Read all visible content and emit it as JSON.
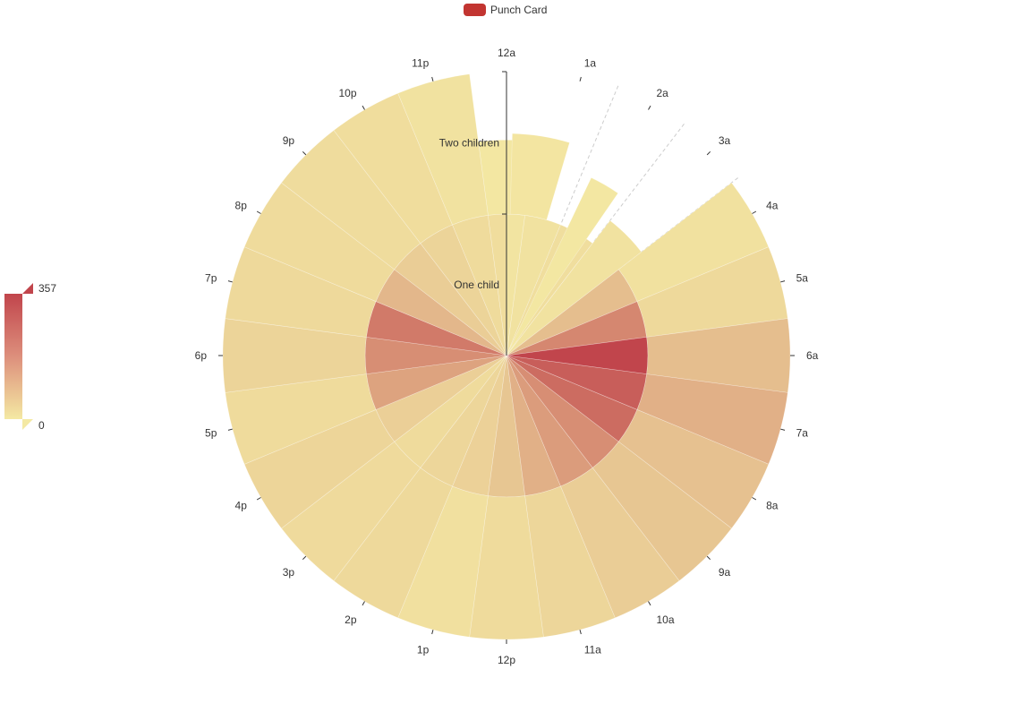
{
  "legend": {
    "label": "Punch Card",
    "color": "#c23531"
  },
  "visual_map": {
    "max_label": "357",
    "min_label": "0",
    "colors": [
      "#f4e9a3",
      "#e5bf8f",
      "#c1454c"
    ]
  },
  "chart_data": {
    "type": "polar-bar",
    "angle_axis": [
      "12a",
      "1a",
      "2a",
      "3a",
      "4a",
      "5a",
      "6a",
      "7a",
      "8a",
      "9a",
      "10a",
      "11a",
      "12p",
      "1p",
      "2p",
      "3p",
      "4p",
      "5p",
      "6p",
      "7p",
      "8p",
      "9p",
      "10p",
      "11p"
    ],
    "radius_axis": [
      "One child",
      "Two children"
    ],
    "series": [
      {
        "name": "One child",
        "values": [
          20,
          30,
          45,
          80,
          180,
          260,
          357,
          320,
          300,
          250,
          230,
          200,
          150,
          100,
          80,
          60,
          110,
          220,
          250,
          280,
          190,
          120,
          90,
          60
        ]
      },
      {
        "name": "Two children",
        "values": [
          10,
          null,
          null,
          null,
          35,
          70,
          180,
          200,
          170,
          150,
          120,
          80,
          60,
          40,
          70,
          65,
          85,
          60,
          90,
          70,
          60,
          55,
          50,
          30
        ]
      }
    ],
    "value_range": [
      0,
      357
    ],
    "minor_extension": [
      0.52,
      0,
      0,
      0,
      1,
      1,
      1,
      1,
      1,
      1,
      1,
      1,
      1,
      1,
      1,
      1,
      1,
      1,
      1,
      1,
      1,
      1,
      1,
      1
    ]
  }
}
